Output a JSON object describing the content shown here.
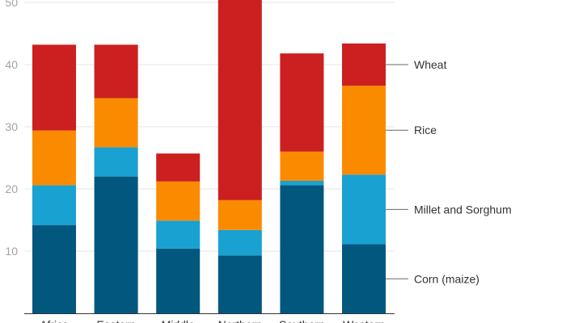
{
  "chart_data": {
    "type": "bar",
    "stacked": true,
    "categories": [
      "Africa",
      "Eastern",
      "Middle",
      "Northern",
      "Southern",
      "Western"
    ],
    "series": [
      {
        "name": "Corn (maize)",
        "color": "#02577e",
        "values": [
          14.2,
          22.0,
          10.4,
          9.3,
          20.6,
          11.1
        ]
      },
      {
        "name": "Millet and Sorghum",
        "color": "#18a1d1",
        "values": [
          6.4,
          4.7,
          4.5,
          4.1,
          0.7,
          11.2
        ]
      },
      {
        "name": "Rice",
        "color": "#fa8b00",
        "values": [
          8.8,
          7.9,
          6.3,
          4.8,
          4.7,
          14.3
        ]
      },
      {
        "name": "Wheat",
        "color": "#cc1f1f",
        "values": [
          13.8,
          8.6,
          4.5,
          32.2,
          15.8,
          6.8
        ]
      }
    ],
    "ylim": [
      0,
      50
    ],
    "yticks": [
      10,
      20,
      30,
      40,
      50
    ],
    "grid": true,
    "legend": "right, labels attached to last bar"
  }
}
